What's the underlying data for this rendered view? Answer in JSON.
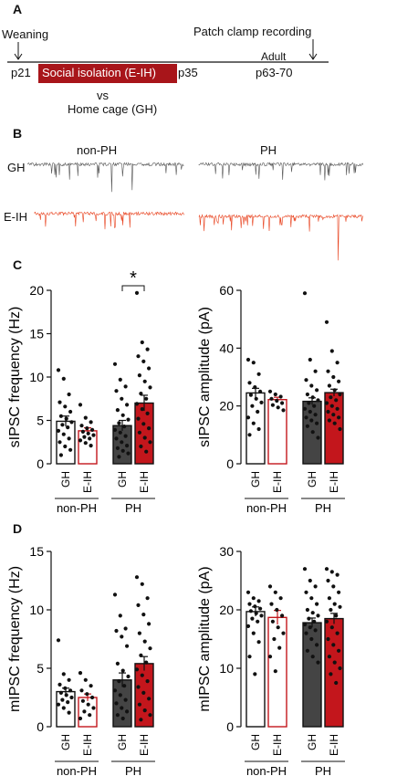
{
  "panel_a": {
    "label": "A",
    "weaning": "Weaning",
    "patch_clamp": "Patch clamp recording",
    "p21": "p21",
    "isolation": "Social isolation (E-IH)",
    "p35": "p35",
    "adult": "Adult",
    "p63_70": "p63-70",
    "vs": "vs",
    "home_cage": "Home cage (GH)"
  },
  "panel_b": {
    "label": "B",
    "col_nonph": "non-PH",
    "col_ph": "PH",
    "row_gh": "GH",
    "row_eih": "E-IH",
    "gh_color": "#555555",
    "eih_color": "#e8401c"
  },
  "panel_c": {
    "label": "C",
    "significance": "*"
  },
  "panel_d": {
    "label": "D"
  },
  "colors": {
    "gh_fill": "#444444",
    "eih_fill": "#c3161c",
    "outline_red": "#c3161c"
  },
  "chart_data": [
    {
      "type": "bar",
      "ylabel": "sIPSC frequency (Hz)",
      "ylim": [
        0,
        20
      ],
      "yticks": [
        0,
        5,
        10,
        15,
        20
      ],
      "categories": [
        "GH",
        "E-IH",
        "GH",
        "E-IH"
      ],
      "groups": [
        "non-PH",
        "PH"
      ],
      "values": [
        4.9,
        3.8,
        4.4,
        7.0
      ],
      "sem": [
        0.6,
        0.35,
        0.6,
        0.9
      ],
      "points": [
        [
          10.8,
          9.8,
          8.0,
          7.1,
          6.6,
          6.0,
          5.5,
          5.2,
          4.8,
          4.5,
          4.2,
          3.8,
          3.4,
          2.9,
          2.5,
          2.0,
          1.6,
          1.0
        ],
        [
          6.8,
          5.3,
          4.8,
          4.4,
          4.1,
          3.9,
          3.7,
          3.5,
          3.3,
          3.1,
          2.9,
          2.7,
          2.4,
          2.1
        ],
        [
          11.5,
          9.7,
          8.9,
          8.4,
          7.5,
          6.8,
          6.2,
          5.6,
          5.1,
          4.7,
          4.3,
          3.9,
          3.6,
          3.2,
          2.9,
          2.5,
          2.1,
          1.8,
          1.5,
          1.2,
          0.8
        ],
        [
          19.7,
          14.0,
          13.2,
          12.4,
          11.8,
          11.0,
          10.2,
          9.5,
          8.8,
          8.1,
          7.5,
          6.9,
          6.3,
          5.8,
          5.2,
          4.6,
          4.1,
          3.6,
          3.0,
          2.5,
          2.0,
          1.4
        ]
      ]
    },
    {
      "type": "bar",
      "ylabel": "sIPSC amplitude (pA)",
      "ylim": [
        0,
        60
      ],
      "yticks": [
        0,
        20,
        40,
        60
      ],
      "categories": [
        "GH",
        "E-IH",
        "GH",
        "E-IH"
      ],
      "groups": [
        "non-PH",
        "PH"
      ],
      "values": [
        24.5,
        22.2,
        21.6,
        24.6
      ],
      "sem": [
        1.6,
        0.8,
        1.2,
        1.2
      ],
      "points": [
        [
          36.0,
          35.0,
          31.0,
          28.0,
          26.5,
          25.0,
          23.8,
          22.5,
          21.2,
          20.0,
          18.0,
          16.0,
          14.0,
          12.0,
          10.0
        ],
        [
          25.0,
          24.0,
          23.2,
          22.5,
          21.8,
          21.0,
          20.3,
          19.5,
          18.5
        ],
        [
          59.0,
          36.0,
          32.0,
          29.0,
          27.0,
          25.5,
          24.0,
          23.0,
          22.0,
          21.0,
          20.0,
          19.0,
          18.0,
          17.0,
          16.0,
          15.0,
          14.0,
          13.0,
          11.0,
          9.0
        ],
        [
          49.0,
          39.0,
          35.0,
          32.0,
          30.0,
          28.5,
          27.0,
          25.5,
          24.0,
          23.0,
          22.0,
          21.0,
          20.0,
          19.0,
          18.0,
          17.0,
          16.0,
          15.0,
          14.0,
          12.0
        ]
      ]
    },
    {
      "type": "bar",
      "ylabel": "mIPSC frequency (Hz)",
      "ylim": [
        0,
        15
      ],
      "yticks": [
        0,
        5,
        10,
        15
      ],
      "categories": [
        "GH",
        "E-IH",
        "GH",
        "E-IH"
      ],
      "groups": [
        "non-PH",
        "PH"
      ],
      "values": [
        3.0,
        2.5,
        4.0,
        5.4
      ],
      "sem": [
        0.3,
        0.3,
        0.6,
        0.6
      ],
      "points": [
        [
          7.4,
          4.5,
          4.0,
          3.6,
          3.3,
          3.1,
          2.9,
          2.7,
          2.5,
          2.3,
          2.1,
          1.9,
          1.6,
          1.2
        ],
        [
          4.6,
          4.0,
          3.5,
          3.1,
          2.8,
          2.5,
          2.2,
          1.9,
          1.6,
          1.3,
          1.0,
          0.7
        ],
        [
          11.3,
          9.5,
          8.4,
          8.2,
          7.7,
          6.9,
          5.4,
          4.8,
          4.3,
          3.9,
          3.5,
          3.1,
          2.7,
          2.3,
          2.0,
          1.6,
          1.3,
          1.0,
          0.7
        ],
        [
          12.8,
          12.2,
          11.0,
          10.4,
          9.6,
          8.8,
          8.0,
          7.3,
          6.7,
          6.1,
          5.5,
          4.9,
          4.4,
          3.9,
          3.4,
          2.9,
          2.4,
          1.9,
          1.4,
          1.0,
          0.6
        ]
      ]
    },
    {
      "type": "bar",
      "ylabel": "mIPSC amplitude (pA)",
      "ylim": [
        0,
        30
      ],
      "yticks": [
        0,
        10,
        20,
        30
      ],
      "categories": [
        "GH",
        "E-IH",
        "GH",
        "E-IH"
      ],
      "groups": [
        "non-PH",
        "PH"
      ],
      "values": [
        19.7,
        18.7,
        17.8,
        18.5
      ],
      "sem": [
        0.8,
        1.2,
        0.8,
        0.9
      ],
      "points": [
        [
          23.0,
          22.0,
          21.5,
          21.0,
          20.6,
          20.2,
          19.8,
          19.4,
          19.0,
          18.5,
          18.0,
          17.2,
          16.0,
          14.5,
          12.0,
          9.0
        ],
        [
          24.0,
          23.0,
          22.0,
          21.0,
          20.0,
          19.0,
          18.0,
          17.0,
          16.0,
          15.0,
          13.5,
          12.0,
          9.5
        ],
        [
          27.0,
          25.0,
          24.0,
          23.0,
          22.0,
          21.0,
          20.0,
          19.5,
          19.0,
          18.5,
          18.0,
          17.5,
          17.0,
          16.5,
          16.0,
          15.0,
          14.0,
          13.0,
          12.0,
          11.0
        ],
        [
          27.0,
          26.5,
          26.0,
          25.0,
          24.0,
          23.0,
          22.0,
          21.0,
          20.5,
          20.0,
          19.0,
          18.0,
          17.0,
          16.0,
          15.0,
          14.0,
          13.0,
          12.0,
          11.0,
          10.0,
          9.0,
          7.5
        ]
      ]
    }
  ]
}
